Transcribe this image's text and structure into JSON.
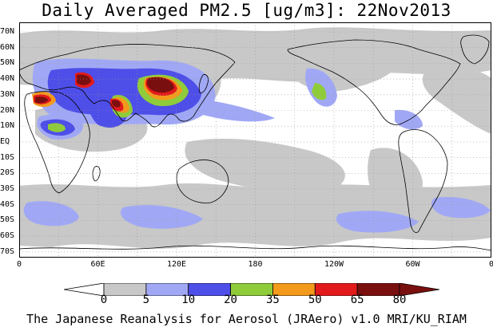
{
  "title": "Daily Averaged PM2.5 [ug/m3]: 22Nov2013",
  "latitude_labels": [
    "70N",
    "60N",
    "50N",
    "40N",
    "30N",
    "20N",
    "10N",
    "EQ",
    "10S",
    "20S",
    "30S",
    "40S",
    "50S",
    "60S",
    "70S"
  ],
  "longitude_labels": [
    "0",
    "60E",
    "120E",
    "180",
    "120W",
    "60W",
    "0"
  ],
  "colorbar": {
    "levels": [
      "0",
      "5",
      "10",
      "20",
      "35",
      "50",
      "65",
      "80"
    ],
    "colors": [
      "#ffffff",
      "#c8c8c8",
      "#a0a8f5",
      "#4e4ee8",
      "#8fcc3a",
      "#f39a1c",
      "#e31a1c",
      "#7a0f0f"
    ]
  },
  "credit": "The Japanese Reanalysis for Aerosol (JRAero) v1.0 MRI/KU_RIAM"
}
